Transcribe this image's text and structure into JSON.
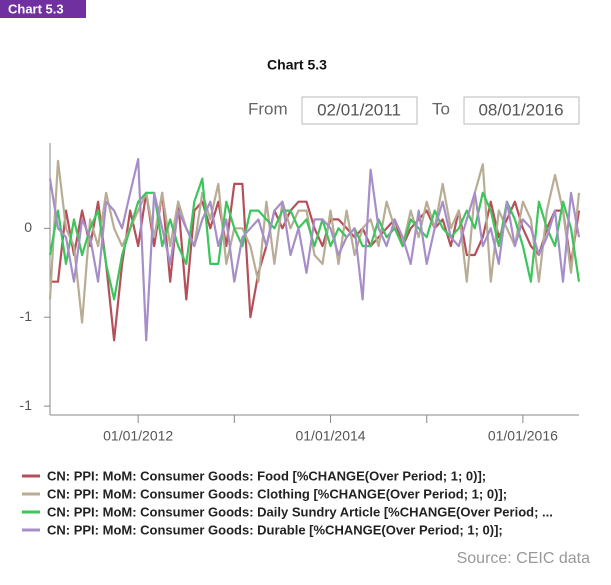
{
  "badge": "Chart 5.3",
  "chart_data": {
    "type": "line",
    "title": "Chart 5.3",
    "from_label": "From",
    "to_label": "To",
    "xlim": [
      "02/01/2011",
      "08/01/2016"
    ],
    "xticks": [
      "01/01/2012",
      "01/01/2014",
      "01/01/2016"
    ],
    "minor_xticks": [
      "01/01/2013",
      "01/01/2015"
    ],
    "ylim": [
      -1.05,
      0.48
    ],
    "yticks": [
      0,
      {
        "value": -0.5,
        "label": "-1"
      },
      {
        "value": -1,
        "label": "-1"
      }
    ],
    "x": [
      "02/01/2011",
      "03/01/2011",
      "04/01/2011",
      "05/01/2011",
      "06/01/2011",
      "07/01/2011",
      "08/01/2011",
      "09/01/2011",
      "10/01/2011",
      "11/01/2011",
      "12/01/2011",
      "01/01/2012",
      "02/01/2012",
      "03/01/2012",
      "04/01/2012",
      "05/01/2012",
      "06/01/2012",
      "07/01/2012",
      "08/01/2012",
      "09/01/2012",
      "10/01/2012",
      "11/01/2012",
      "12/01/2012",
      "01/01/2013",
      "02/01/2013",
      "03/01/2013",
      "04/01/2013",
      "05/01/2013",
      "06/01/2013",
      "07/01/2013",
      "08/01/2013",
      "09/01/2013",
      "10/01/2013",
      "11/01/2013",
      "12/01/2013",
      "01/01/2014",
      "02/01/2014",
      "03/01/2014",
      "04/01/2014",
      "05/01/2014",
      "06/01/2014",
      "07/01/2014",
      "08/01/2014",
      "09/01/2014",
      "10/01/2014",
      "11/01/2014",
      "12/01/2014",
      "01/01/2015",
      "02/01/2015",
      "03/01/2015",
      "04/01/2015",
      "05/01/2015",
      "06/01/2015",
      "07/01/2015",
      "08/01/2015",
      "09/01/2015",
      "10/01/2015",
      "11/01/2015",
      "12/01/2015",
      "01/01/2016",
      "02/01/2016",
      "03/01/2016",
      "04/01/2016",
      "05/01/2016",
      "06/01/2016",
      "07/01/2016",
      "08/01/2016"
    ],
    "series": [
      {
        "name": "CN: PPI: MoM: Consumer Goods: Food [%CHANGE(Over Period; 1; 0)];",
        "color": "#b5505a",
        "values": [
          -0.3,
          -0.3,
          0.1,
          -0.15,
          0.1,
          -0.1,
          0.15,
          -0.2,
          -0.63,
          -0.2,
          0.1,
          -0.1,
          0.2,
          -0.1,
          0.2,
          -0.3,
          0.15,
          -0.4,
          0.1,
          0.15,
          0.0,
          0.15,
          -0.1,
          0.25,
          0.25,
          -0.5,
          -0.25,
          -0.1,
          0.1,
          0.0,
          0.1,
          0.15,
          0.15,
          0.0,
          -0.1,
          0.05,
          0.05,
          0.0,
          -0.05,
          0.0,
          -0.1,
          -0.05,
          0.0,
          0.05,
          -0.1,
          0.0,
          0.05,
          0.1,
          0.0,
          0.05,
          -0.1,
          0.1,
          -0.15,
          -0.15,
          -0.05,
          0.15,
          -0.05,
          0.05,
          0.15,
          0.0,
          -0.1,
          -0.15,
          0.0,
          0.1,
          0.1,
          -0.2,
          0.1
        ]
      },
      {
        "name": "CN: PPI: MoM: Consumer Goods: Clothing [%CHANGE(Over Period; 1; 0)];",
        "color": "#b8ad94",
        "values": [
          -0.4,
          0.38,
          0.0,
          -0.1,
          -0.53,
          0.05,
          -0.1,
          0.2,
          0.0,
          -0.1,
          0.0,
          0.1,
          0.2,
          -0.05,
          0.2,
          -0.1,
          0.15,
          0.0,
          -0.1,
          0.2,
          0.05,
          0.25,
          -0.2,
          0.0,
          0.0,
          -0.1,
          -0.3,
          0.15,
          -0.2,
          0.15,
          0.0,
          0.1,
          0.1,
          -0.15,
          -0.2,
          0.1,
          -0.2,
          0.1,
          -0.15,
          0.0,
          0.05,
          -0.1,
          0.15,
          0.0,
          -0.1,
          0.1,
          -0.05,
          0.15,
          0.0,
          0.25,
          0.0,
          0.1,
          -0.3,
          0.2,
          0.36,
          -0.3,
          0.1,
          0.0,
          -0.1,
          0.15,
          0.05,
          -0.3,
          0.1,
          0.3,
          0.1,
          -0.25,
          0.2
        ]
      },
      {
        "name": "CN: PPI: MoM: Consumer Goods: Daily Sundry Article [%CHANGE(Over Period; ...",
        "color": "#3cc55b",
        "values": [
          -0.15,
          0.1,
          -0.2,
          0.05,
          -0.15,
          0.0,
          0.1,
          -0.2,
          -0.4,
          -0.15,
          0.0,
          0.15,
          0.2,
          0.2,
          -0.1,
          0.05,
          -0.1,
          -0.2,
          0.15,
          0.28,
          -0.2,
          -0.2,
          0.15,
          0.0,
          -0.1,
          0.1,
          0.1,
          0.05,
          0.0,
          0.1,
          0.1,
          0.0,
          0.05,
          -0.1,
          0.05,
          -0.1,
          0.0,
          -0.05,
          0.0,
          -0.1,
          -0.1,
          0.05,
          -0.05,
          0.0,
          -0.1,
          0.05,
          0.0,
          -0.05,
          0.1,
          0.0,
          -0.05,
          0.0,
          0.1,
          0.0,
          0.2,
          0.1,
          -0.1,
          0.15,
          0.05,
          -0.1,
          -0.3,
          0.15,
          0.0,
          -0.1,
          0.15,
          0.0,
          -0.3
        ]
      },
      {
        "name": "CN: PPI: MoM: Consumer Goods: Durable [%CHANGE(Over Period; 1; 0)];",
        "color": "#a68fc9",
        "values": [
          0.28,
          0.0,
          -0.05,
          -0.3,
          0.05,
          -0.05,
          -0.3,
          0.15,
          0.1,
          0.0,
          0.2,
          0.39,
          -0.63,
          0.2,
          0.0,
          -0.2,
          0.1,
          0.0,
          -0.1,
          0.05,
          0.15,
          -0.1,
          0.05,
          -0.3,
          -0.05,
          0.0,
          0.05,
          -0.1,
          0.1,
          0.15,
          -0.15,
          0.0,
          -0.25,
          0.05,
          0.05,
          0.0,
          -0.15,
          -0.05,
          0.0,
          -0.4,
          0.33,
          0.0,
          -0.1,
          0.05,
          -0.05,
          -0.2,
          0.1,
          -0.2,
          0.0,
          0.15,
          -0.05,
          -0.1,
          0.05,
          0.2,
          -0.1,
          0.0,
          -0.2,
          0.15,
          -0.1,
          0.05,
          0.0,
          -0.15,
          -0.05,
          0.1,
          -0.3,
          0.2,
          -0.05
        ]
      }
    ],
    "source": "Source: CEIC data"
  }
}
